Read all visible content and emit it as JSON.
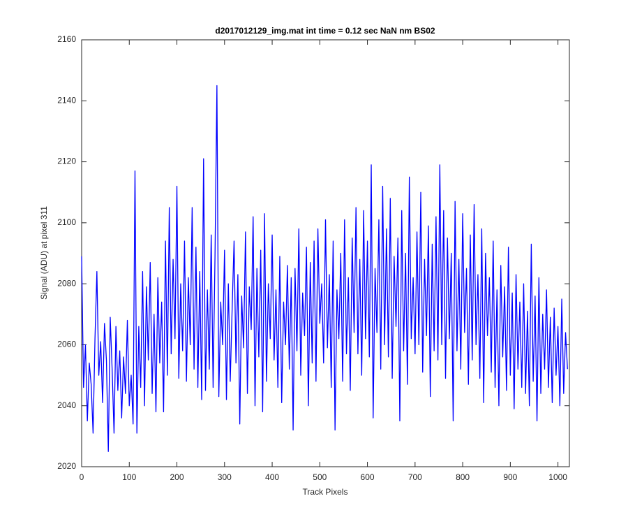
{
  "chart_data": {
    "type": "line",
    "title": "d2017012129_img.mat int time = 0.12 sec  NaN nm BS02",
    "x_label": "Track Pixels",
    "y_label": "Signal (ADU) at pixel 311",
    "xlim": [
      0,
      1024
    ],
    "ylim": [
      2020,
      2160
    ],
    "xticks": [
      0,
      100,
      200,
      300,
      400,
      500,
      600,
      700,
      800,
      900,
      1000
    ],
    "yticks": [
      2020,
      2040,
      2060,
      2080,
      2100,
      2120,
      2140,
      2160
    ],
    "box": true,
    "x": [
      0,
      4,
      8,
      12,
      16,
      20,
      24,
      28,
      32,
      36,
      40,
      44,
      48,
      52,
      56,
      60,
      64,
      68,
      72,
      76,
      80,
      84,
      88,
      92,
      96,
      100,
      104,
      108,
      112,
      116,
      120,
      124,
      128,
      132,
      136,
      140,
      144,
      148,
      152,
      156,
      160,
      164,
      168,
      172,
      176,
      180,
      184,
      188,
      192,
      196,
      200,
      204,
      208,
      212,
      216,
      220,
      224,
      228,
      232,
      236,
      240,
      244,
      248,
      252,
      256,
      260,
      264,
      268,
      272,
      276,
      280,
      284,
      288,
      292,
      296,
      300,
      304,
      308,
      312,
      316,
      320,
      324,
      328,
      332,
      336,
      340,
      344,
      348,
      352,
      356,
      360,
      364,
      368,
      372,
      376,
      380,
      384,
      388,
      392,
      396,
      400,
      404,
      408,
      412,
      416,
      420,
      424,
      428,
      432,
      436,
      440,
      444,
      448,
      452,
      456,
      460,
      464,
      468,
      472,
      476,
      480,
      484,
      488,
      492,
      496,
      500,
      504,
      508,
      512,
      516,
      520,
      524,
      528,
      532,
      536,
      540,
      544,
      548,
      552,
      556,
      560,
      564,
      568,
      572,
      576,
      580,
      584,
      588,
      592,
      596,
      600,
      604,
      608,
      612,
      616,
      620,
      624,
      628,
      632,
      636,
      640,
      644,
      648,
      652,
      656,
      660,
      664,
      668,
      672,
      676,
      680,
      684,
      688,
      692,
      696,
      700,
      704,
      708,
      712,
      716,
      720,
      724,
      728,
      732,
      736,
      740,
      744,
      748,
      752,
      756,
      760,
      764,
      768,
      772,
      776,
      780,
      784,
      788,
      792,
      796,
      800,
      804,
      808,
      812,
      816,
      820,
      824,
      828,
      832,
      836,
      840,
      844,
      848,
      852,
      856,
      860,
      864,
      868,
      872,
      876,
      880,
      884,
      888,
      892,
      896,
      900,
      904,
      908,
      912,
      916,
      920,
      924,
      928,
      932,
      936,
      940,
      944,
      948,
      952,
      956,
      960,
      964,
      968,
      972,
      976,
      980,
      984,
      988,
      992,
      996,
      1000,
      1004,
      1008,
      1012,
      1016,
      1020
    ],
    "series": [
      {
        "color": "#0000ff",
        "values": [
          2089,
          2046,
          2060,
          2035,
          2054,
          2047,
          2031,
          2062,
          2084,
          2050,
          2061,
          2041,
          2067,
          2055,
          2025,
          2069,
          2052,
          2031,
          2066,
          2045,
          2058,
          2036,
          2056,
          2044,
          2068,
          2040,
          2050,
          2034,
          2117,
          2031,
          2066,
          2046,
          2084,
          2040,
          2079,
          2055,
          2087,
          2044,
          2070,
          2038,
          2082,
          2054,
          2074,
          2038,
          2094,
          2050,
          2105,
          2057,
          2088,
          2062,
          2112,
          2049,
          2080,
          2058,
          2094,
          2048,
          2082,
          2060,
          2105,
          2052,
          2092,
          2046,
          2084,
          2042,
          2121,
          2045,
          2078,
          2052,
          2096,
          2046,
          2089,
          2145,
          2043,
          2074,
          2060,
          2091,
          2042,
          2080,
          2048,
          2072,
          2094,
          2054,
          2083,
          2034,
          2076,
          2059,
          2097,
          2044,
          2079,
          2065,
          2102,
          2040,
          2085,
          2056,
          2091,
          2038,
          2103,
          2048,
          2080,
          2062,
          2096,
          2055,
          2078,
          2046,
          2089,
          2041,
          2074,
          2060,
          2086,
          2052,
          2082,
          2032,
          2085,
          2058,
          2098,
          2050,
          2077,
          2063,
          2092,
          2040,
          2087,
          2054,
          2094,
          2048,
          2098,
          2067,
          2080,
          2054,
          2101,
          2059,
          2083,
          2046,
          2094,
          2032,
          2078,
          2062,
          2090,
          2048,
          2101,
          2057,
          2082,
          2045,
          2095,
          2064,
          2105,
          2057,
          2088,
          2050,
          2104,
          2062,
          2094,
          2056,
          2119,
          2036,
          2085,
          2064,
          2101,
          2052,
          2112,
          2060,
          2098,
          2056,
          2108,
          2049,
          2089,
          2066,
          2095,
          2035,
          2104,
          2058,
          2090,
          2047,
          2115,
          2062,
          2082,
          2057,
          2097,
          2060,
          2110,
          2051,
          2088,
          2063,
          2099,
          2043,
          2093,
          2058,
          2102,
          2055,
          2119,
          2060,
          2104,
          2049,
          2095,
          2062,
          2090,
          2035,
          2107,
          2058,
          2088,
          2052,
          2103,
          2064,
          2085,
          2047,
          2096,
          2055,
          2106,
          2060,
          2083,
          2049,
          2098,
          2041,
          2090,
          2063,
          2082,
          2051,
          2094,
          2046,
          2078,
          2040,
          2086,
          2056,
          2079,
          2045,
          2092,
          2050,
          2077,
          2039,
          2083,
          2052,
          2074,
          2046,
          2080,
          2044,
          2071,
          2040,
          2093,
          2048,
          2076,
          2035,
          2082,
          2044,
          2070,
          2052,
          2078,
          2046,
          2069,
          2041,
          2072,
          2050,
          2066,
          2040,
          2075,
          2044,
          2064,
          2052
        ]
      }
    ]
  }
}
